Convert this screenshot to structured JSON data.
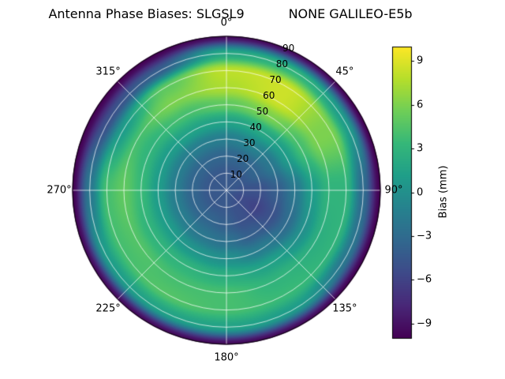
{
  "chart_data": {
    "type": "heatmap",
    "projection": "polar",
    "title": "Antenna Phase Biases: SLGSL9           NONE GALILEO-E5b",
    "theta_ticks": [
      {
        "label": "0°",
        "deg": 0
      },
      {
        "label": "45°",
        "deg": 45
      },
      {
        "label": "90°",
        "deg": 90
      },
      {
        "label": "135°",
        "deg": 135
      },
      {
        "label": "180°",
        "deg": 180
      },
      {
        "label": "225°",
        "deg": 225
      },
      {
        "label": "270°",
        "deg": 270
      },
      {
        "label": "315°",
        "deg": 315
      }
    ],
    "r_ticks": [
      10,
      20,
      30,
      40,
      50,
      60,
      70,
      80,
      90
    ],
    "r_max": 90,
    "r_label_angle_deg": 22.5,
    "azimuth_deg": [
      0,
      30,
      60,
      90,
      120,
      150,
      180,
      210,
      240,
      270,
      300,
      330,
      360
    ],
    "zenith_deg": [
      0,
      10,
      20,
      30,
      40,
      50,
      60,
      70,
      80,
      90
    ],
    "values": [
      [
        -4.5,
        -4.5,
        -3.5,
        -1.5,
        1.5,
        5.0,
        7.5,
        8.0,
        2.0,
        -9.5
      ],
      [
        -4.5,
        -4.5,
        -3.5,
        -1.0,
        2.0,
        6.0,
        8.5,
        8.5,
        3.0,
        -9.5
      ],
      [
        -4.5,
        -4.5,
        -3.5,
        -2.0,
        1.0,
        4.0,
        6.0,
        6.0,
        1.0,
        -10.0
      ],
      [
        -4.5,
        -5.0,
        -5.0,
        -4.0,
        -2.0,
        1.0,
        3.0,
        3.0,
        -3.0,
        -10.0
      ],
      [
        -4.5,
        -5.5,
        -6.0,
        -5.0,
        -3.0,
        0.0,
        2.5,
        3.0,
        -2.0,
        -10.0
      ],
      [
        -4.5,
        -5.0,
        -5.0,
        -4.0,
        -1.5,
        1.5,
        3.0,
        3.5,
        1.0,
        -9.5
      ],
      [
        -4.5,
        -4.5,
        -4.0,
        -2.5,
        0.0,
        2.5,
        4.0,
        4.0,
        1.5,
        -9.5
      ],
      [
        -4.5,
        -4.5,
        -3.5,
        -2.0,
        0.5,
        3.0,
        4.0,
        4.5,
        1.5,
        -9.5
      ],
      [
        -4.5,
        -4.5,
        -3.5,
        -1.5,
        1.0,
        3.0,
        4.5,
        4.0,
        1.0,
        -9.5
      ],
      [
        -4.5,
        -4.5,
        -3.5,
        -1.5,
        1.0,
        3.5,
        5.0,
        4.0,
        -2.0,
        -10.0
      ],
      [
        -4.5,
        -4.5,
        -3.5,
        -1.5,
        1.0,
        3.0,
        4.0,
        1.0,
        -5.0,
        -10.0
      ],
      [
        -4.5,
        -4.5,
        -3.5,
        -1.5,
        1.5,
        4.0,
        6.0,
        5.0,
        -4.0,
        -10.0
      ],
      [
        -4.5,
        -4.5,
        -3.5,
        -1.5,
        1.5,
        5.0,
        7.5,
        8.0,
        2.0,
        -9.5
      ]
    ],
    "vmin": -10,
    "vmax": 10,
    "colormap": "viridis",
    "colormap_stops": [
      "#440154",
      "#482878",
      "#3e4a89",
      "#31688e",
      "#26828e",
      "#1f9e89",
      "#35b779",
      "#6ece58",
      "#b5de2b",
      "#fde725"
    ],
    "grid_color": "#ffffff",
    "colorbar": {
      "label": "Bias (mm)",
      "ticks": [
        -9,
        -6,
        -3,
        0,
        3,
        6,
        9
      ],
      "tick_labels": [
        "−9",
        "−6",
        "−3",
        "0",
        "3",
        "6",
        "9"
      ]
    }
  }
}
